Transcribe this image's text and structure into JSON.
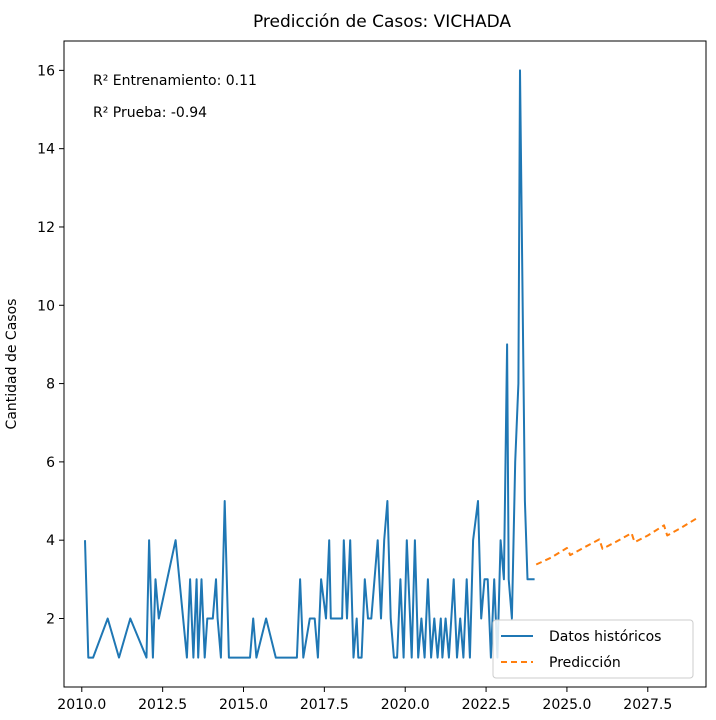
{
  "chart_data": {
    "type": "line",
    "title": "Predicción de Casos: VICHADA",
    "xlabel": "",
    "ylabel": "Cantidad de Casos",
    "xlim": [
      2009.45,
      2029.3
    ],
    "ylim": [
      0.25,
      16.75
    ],
    "x_ticks": [
      2010.0,
      2012.5,
      2015.0,
      2017.5,
      2020.0,
      2022.5,
      2025.0,
      2027.5
    ],
    "x_tick_labels": [
      "2010.0",
      "2012.5",
      "2015.0",
      "2017.5",
      "2020.0",
      "2022.5",
      "2025.0",
      "2027.5"
    ],
    "y_ticks": [
      2,
      4,
      6,
      8,
      10,
      12,
      14,
      16
    ],
    "y_tick_labels": [
      "2",
      "4",
      "6",
      "8",
      "10",
      "12",
      "14",
      "16"
    ],
    "grid": false,
    "legend_position": "bottom-right",
    "annotations": [
      "R² Entrenamiento: 0.11",
      "R² Prueba: -0.94"
    ],
    "series": [
      {
        "name": "Datos históricos",
        "color": "#1f77b4",
        "style": "solid",
        "x": [
          2010.1,
          2010.2,
          2010.35,
          2010.8,
          2011.15,
          2011.5,
          2012.0,
          2012.08,
          2012.2,
          2012.28,
          2012.38,
          2012.9,
          2013.25,
          2013.35,
          2013.45,
          2013.55,
          2013.6,
          2013.7,
          2013.8,
          2013.88,
          2013.95,
          2014.05,
          2014.15,
          2014.2,
          2014.3,
          2014.42,
          2014.55,
          2014.65,
          2015.2,
          2015.3,
          2015.4,
          2015.7,
          2016.0,
          2016.1,
          2016.35,
          2016.65,
          2016.75,
          2016.85,
          2017.05,
          2017.2,
          2017.3,
          2017.4,
          2017.55,
          2017.65,
          2017.7,
          2017.85,
          2017.95,
          2018.05,
          2018.1,
          2018.2,
          2018.3,
          2018.4,
          2018.5,
          2018.55,
          2018.65,
          2018.75,
          2018.85,
          2018.95,
          2019.05,
          2019.15,
          2019.25,
          2019.35,
          2019.45,
          2019.55,
          2019.65,
          2019.75,
          2019.85,
          2019.95,
          2020.05,
          2020.15,
          2020.2,
          2020.3,
          2020.4,
          2020.5,
          2020.6,
          2020.7,
          2020.8,
          2020.9,
          2021.0,
          2021.1,
          2021.15,
          2021.25,
          2021.35,
          2021.5,
          2021.6,
          2021.7,
          2021.8,
          2021.9,
          2022.0,
          2022.1,
          2022.25,
          2022.35,
          2022.45,
          2022.55,
          2022.65,
          2022.75,
          2022.85,
          2022.95,
          2023.05,
          2023.15,
          2023.2,
          2023.3,
          2023.4,
          2023.5,
          2023.55,
          2023.7,
          2023.78,
          2023.85,
          2024.0
        ],
        "y": [
          4,
          1,
          1,
          2,
          1,
          2,
          1,
          4,
          1,
          3,
          2,
          4,
          1,
          3,
          1,
          3,
          1,
          3,
          1,
          2,
          2,
          2,
          3,
          2,
          1,
          5,
          1,
          1,
          1,
          2,
          1,
          2,
          1,
          1,
          1,
          1,
          3,
          1,
          2,
          2,
          1,
          3,
          2,
          4,
          2,
          2,
          2,
          2,
          4,
          2,
          4,
          1,
          2,
          1,
          1,
          3,
          2,
          2,
          3,
          4,
          2,
          4,
          5,
          2,
          1,
          1,
          3,
          1,
          4,
          2,
          1,
          4,
          1,
          2,
          1,
          3,
          1,
          2,
          1,
          2,
          1,
          2,
          1,
          3,
          1,
          2,
          1,
          3,
          1,
          4,
          5,
          2,
          3,
          3,
          1,
          3,
          1,
          4,
          3,
          9,
          3,
          2,
          6,
          8,
          16,
          5,
          3,
          3,
          3
        ],
        "x_note": "",
        "values_note": ""
      },
      {
        "name": "Predicción",
        "color": "#ff7f0e",
        "style": "dashed",
        "x": [
          2024.05,
          2024.5,
          2025.0,
          2025.05,
          2025.1,
          2025.5,
          2026.0,
          2026.05,
          2026.1,
          2026.5,
          2027.0,
          2027.05,
          2027.1,
          2027.5,
          2028.0,
          2028.05,
          2028.1,
          2028.5,
          2029.0
        ],
        "y": [
          3.38,
          3.55,
          3.8,
          3.72,
          3.62,
          3.8,
          4.02,
          3.9,
          3.78,
          3.95,
          4.18,
          4.05,
          3.95,
          4.12,
          4.38,
          4.25,
          4.12,
          4.3,
          4.55
        ]
      }
    ]
  }
}
